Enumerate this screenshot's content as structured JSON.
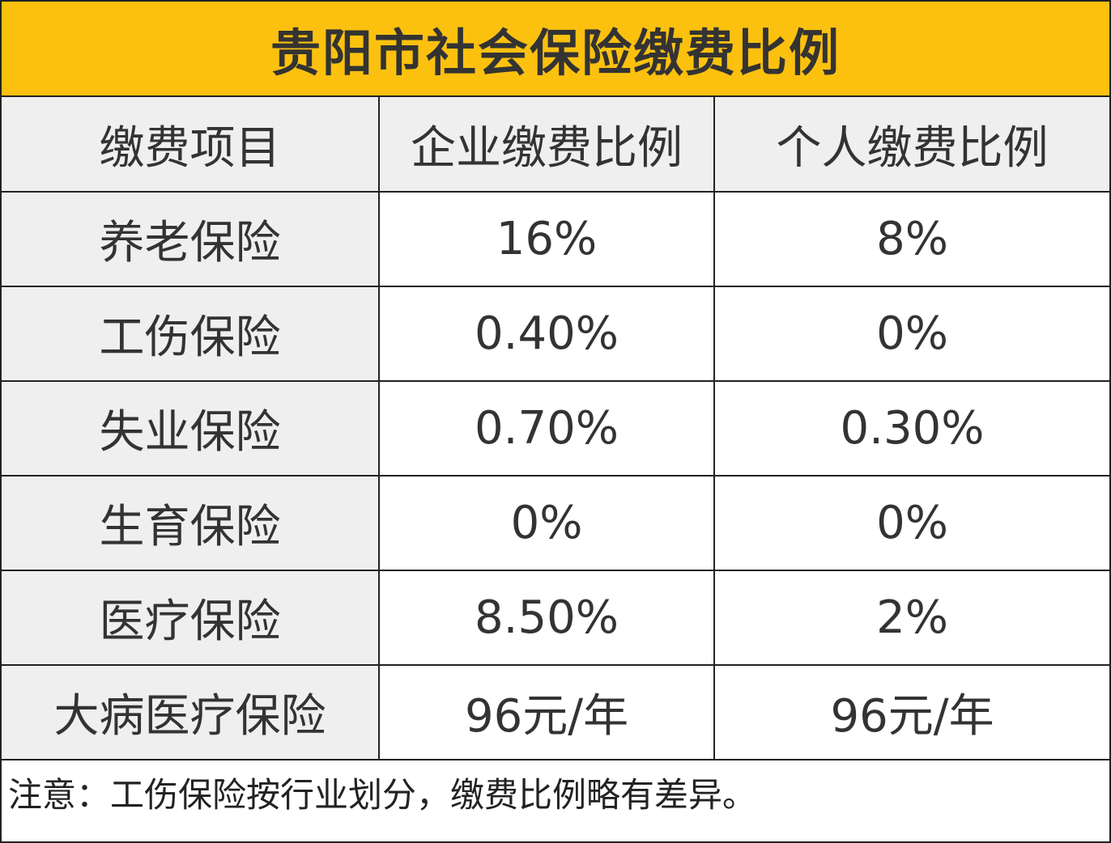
{
  "title": "贵阳市社会保险缴费比例",
  "colors": {
    "title_background": "#FCC10F",
    "label_background": "#EFEFEF"
  },
  "table": {
    "headers": [
      "缴费项目",
      "企业缴费比例",
      "个人缴费比例"
    ],
    "rows": [
      {
        "item": "养老保险",
        "company": "16%",
        "personal": "8%"
      },
      {
        "item": "工伤保险",
        "company": "0.40%",
        "personal": "0%"
      },
      {
        "item": "失业保险",
        "company": "0.70%",
        "personal": "0.30%"
      },
      {
        "item": "生育保险",
        "company": "0%",
        "personal": "0%"
      },
      {
        "item": "医疗保险",
        "company": "8.50%",
        "personal": "2%"
      },
      {
        "item": "大病医疗保险",
        "company": "96元/年",
        "personal": "96元/年"
      }
    ]
  },
  "note": "注意：工伤保险按行业划分，缴费比例略有差异。"
}
